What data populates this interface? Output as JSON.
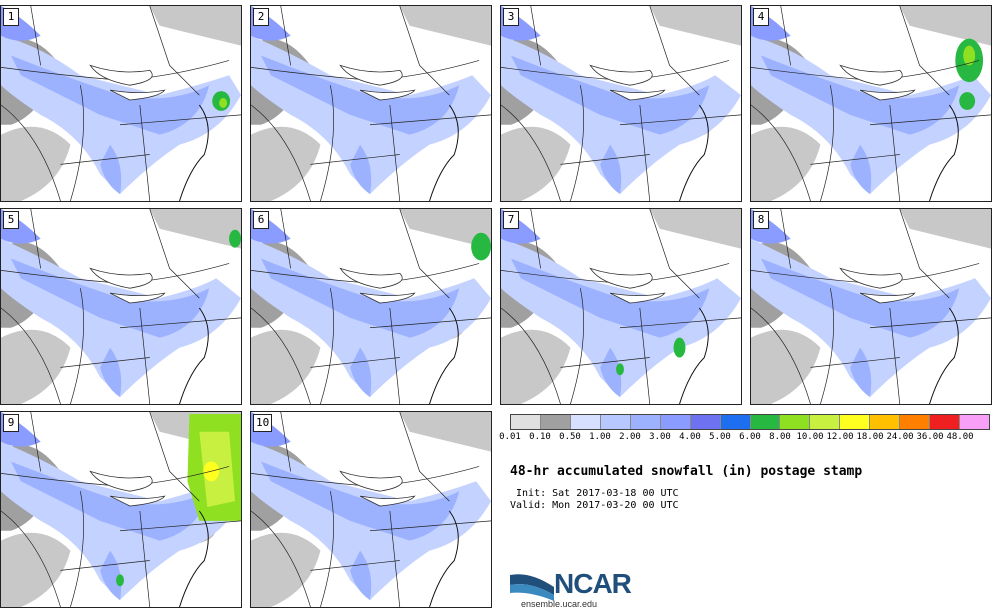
{
  "stamps": [
    {
      "label": "1"
    },
    {
      "label": "2"
    },
    {
      "label": "3"
    },
    {
      "label": "4"
    },
    {
      "label": "5"
    },
    {
      "label": "6"
    },
    {
      "label": "7"
    },
    {
      "label": "8"
    },
    {
      "label": "9"
    },
    {
      "label": "10"
    }
  ],
  "legend": {
    "labels": [
      "0.01",
      "0.10",
      "0.50",
      "1.00",
      "2.00",
      "3.00",
      "4.00",
      "5.00",
      "6.00",
      "8.00",
      "10.00",
      "12.00",
      "18.00",
      "24.00",
      "36.00",
      "48.00"
    ],
    "colors": [
      "#e0e0e0",
      "#a0a0a0",
      "#d8e0ff",
      "#b6c8ff",
      "#9cb2ff",
      "#8a9cff",
      "#6e72f0",
      "#1e6ef0",
      "#26b840",
      "#8ee020",
      "#c8f040",
      "#ffff20",
      "#ffc000",
      "#ff8000",
      "#f02020",
      "#f8a0f8"
    ]
  },
  "title": "48-hr accumulated snowfall (in) postage stamp",
  "init": " Init: Sat 2017-03-18 00 UTC",
  "valid": "Valid: Mon 2017-03-20 00 UTC",
  "logo": {
    "name": "NCAR",
    "url": "ensemble.ucar.edu"
  }
}
